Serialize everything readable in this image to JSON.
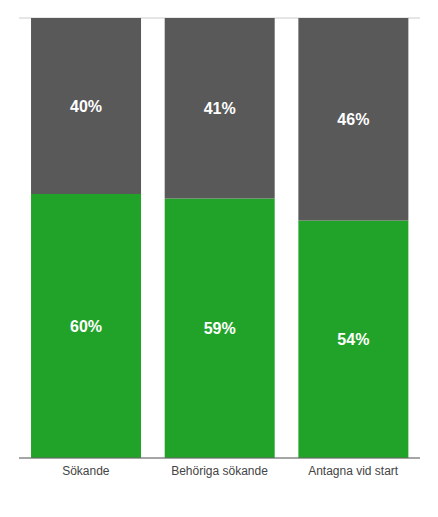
{
  "chart_data": {
    "type": "bar",
    "stacked": true,
    "categories": [
      "Sökande",
      "Behöriga sökande",
      "Antagna vid start"
    ],
    "series": [
      {
        "color": "#21a329",
        "values": [
          60,
          59,
          54
        ],
        "value_labels": [
          "60%",
          "59%",
          "54%"
        ]
      },
      {
        "color": "#595959",
        "values": [
          40,
          41,
          46
        ],
        "value_labels": [
          "40%",
          "41%",
          "46%"
        ]
      }
    ],
    "ylim": [
      0,
      100
    ],
    "yticks": [
      0,
      20,
      40,
      60,
      80,
      100
    ],
    "grid": true,
    "data_labels": true,
    "tick_labels": "x"
  }
}
